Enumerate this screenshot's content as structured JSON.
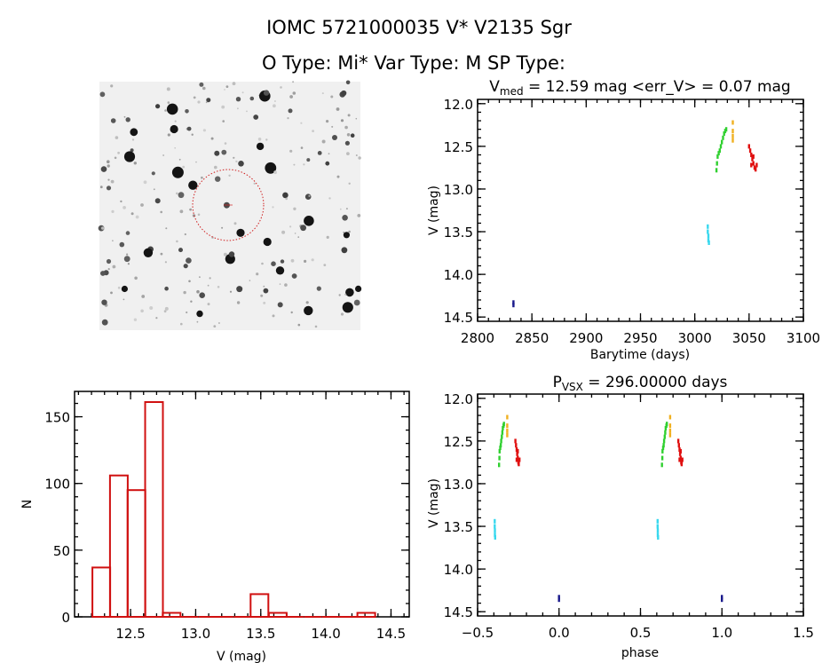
{
  "header": {
    "line1": "IOMC 5721000035    V* V2135 Sgr",
    "line2": "O Type: Mi*  Var Type: M   SP Type:"
  },
  "colors": {
    "axis": "#000000",
    "histogram": "#d01010",
    "navy": "#1a1a8c",
    "cyan": "#38d8ee",
    "green": "#30d030",
    "orange": "#f0b020",
    "red": "#e01010",
    "aperture": "#d02020"
  },
  "chart_data": [
    {
      "type": "scatter",
      "title_main": "V",
      "title_sub": "med",
      "title_rest": " = 12.59 mag <err_V> = 0.07 mag",
      "xlabel": "Barytime (days)",
      "ylabel": "V (mag)",
      "xlim": [
        2800,
        3100
      ],
      "ylim": [
        11.95,
        14.55
      ],
      "y_inverted": true,
      "xticks": [
        "2800",
        "2850",
        "2900",
        "2950",
        "3000",
        "3050",
        "3100"
      ],
      "yticks": [
        "12.0",
        "12.5",
        "13.0",
        "13.5",
        "14.0",
        "14.5"
      ],
      "series": [
        {
          "name": "navy",
          "color": "#1a1a8c",
          "points": [
            [
              2833,
              14.33
            ],
            [
              2833,
              14.36
            ]
          ]
        },
        {
          "name": "cyan",
          "color": "#38d8ee",
          "points": [
            [
              3012,
              13.44
            ],
            [
              3012,
              13.5
            ],
            [
              3012.5,
              13.55
            ],
            [
              3012.5,
              13.6
            ],
            [
              3013,
              13.63
            ]
          ]
        },
        {
          "name": "green",
          "color": "#30d030",
          "points": [
            [
              3020,
              12.78
            ],
            [
              3020.5,
              12.7
            ],
            [
              3021,
              12.62
            ],
            [
              3022,
              12.58
            ],
            [
              3023,
              12.55
            ],
            [
              3024,
              12.5
            ],
            [
              3025,
              12.45
            ],
            [
              3026,
              12.4
            ],
            [
              3027,
              12.35
            ],
            [
              3028,
              12.32
            ],
            [
              3029,
              12.3
            ]
          ]
        },
        {
          "name": "orange",
          "color": "#f0b020",
          "points": [
            [
              3035,
              12.22
            ],
            [
              3035,
              12.32
            ],
            [
              3035,
              12.38
            ],
            [
              3035,
              12.43
            ]
          ]
        },
        {
          "name": "red",
          "color": "#e01010",
          "points": [
            [
              3050,
              12.5
            ],
            [
              3051,
              12.55
            ],
            [
              3052,
              12.6
            ],
            [
              3053,
              12.65
            ],
            [
              3054,
              12.7
            ],
            [
              3055,
              12.75
            ],
            [
              3056,
              12.77
            ],
            [
              3057,
              12.72
            ],
            [
              3052,
              12.72
            ],
            [
              3054,
              12.62
            ]
          ]
        }
      ]
    },
    {
      "type": "bar",
      "xlabel": "V (mag)",
      "ylabel": "N",
      "xlim": [
        12.07,
        14.64
      ],
      "ylim": [
        0,
        169
      ],
      "bin_width": 0.136,
      "xticks": [
        "12.5",
        "13.0",
        "13.5",
        "14.0",
        "14.5"
      ],
      "yticks": [
        "0",
        "50",
        "100",
        "150"
      ],
      "bins": [
        12.275,
        12.41,
        12.545,
        12.68,
        12.815,
        12.95,
        13.09,
        13.22,
        13.36,
        13.49,
        13.63,
        13.76,
        13.9,
        14.04,
        14.17,
        14.31
      ],
      "values": [
        37,
        106,
        95,
        161,
        3,
        0,
        0,
        0,
        0,
        17,
        3,
        0,
        0,
        0,
        0,
        3
      ]
    },
    {
      "type": "scatter",
      "title_main": "P",
      "title_sub": "VSX",
      "title_rest": " = 296.00000 days",
      "xlabel": "phase",
      "ylabel": "V (mag)",
      "xlim": [
        -0.5,
        1.5
      ],
      "ylim": [
        11.95,
        14.55
      ],
      "y_inverted": true,
      "xticks": [
        "-0.5",
        "0.0",
        "0.5",
        "1.0",
        "1.5"
      ],
      "yticks": [
        "12.0",
        "12.5",
        "13.0",
        "13.5",
        "14.0",
        "14.5"
      ],
      "series": [
        {
          "name": "navy",
          "color": "#1a1a8c",
          "points": [
            [
              0.0,
              14.33
            ],
            [
              0.0,
              14.36
            ],
            [
              1.0,
              14.33
            ],
            [
              1.0,
              14.36
            ]
          ]
        },
        {
          "name": "cyan",
          "color": "#38d8ee",
          "points": [
            [
              -0.395,
              13.44
            ],
            [
              -0.395,
              13.5
            ],
            [
              -0.394,
              13.55
            ],
            [
              -0.394,
              13.6
            ],
            [
              -0.392,
              13.63
            ],
            [
              0.605,
              13.44
            ],
            [
              0.605,
              13.5
            ],
            [
              0.606,
              13.55
            ],
            [
              0.606,
              13.6
            ],
            [
              0.608,
              13.63
            ]
          ]
        },
        {
          "name": "green",
          "color": "#30d030",
          "points": [
            [
              -0.368,
              12.78
            ],
            [
              -0.366,
              12.7
            ],
            [
              -0.365,
              12.62
            ],
            [
              -0.361,
              12.58
            ],
            [
              -0.358,
              12.55
            ],
            [
              -0.355,
              12.5
            ],
            [
              -0.351,
              12.45
            ],
            [
              -0.348,
              12.4
            ],
            [
              -0.345,
              12.35
            ],
            [
              -0.341,
              12.32
            ],
            [
              -0.338,
              12.3
            ],
            [
              0.632,
              12.78
            ],
            [
              0.634,
              12.7
            ],
            [
              0.635,
              12.62
            ],
            [
              0.639,
              12.58
            ],
            [
              0.642,
              12.55
            ],
            [
              0.645,
              12.5
            ],
            [
              0.649,
              12.45
            ],
            [
              0.652,
              12.4
            ],
            [
              0.655,
              12.35
            ],
            [
              0.659,
              12.32
            ],
            [
              0.662,
              12.3
            ]
          ]
        },
        {
          "name": "orange",
          "color": "#f0b020",
          "points": [
            [
              -0.318,
              12.22
            ],
            [
              -0.318,
              12.32
            ],
            [
              -0.318,
              12.38
            ],
            [
              -0.318,
              12.43
            ],
            [
              0.682,
              12.22
            ],
            [
              0.682,
              12.32
            ],
            [
              0.682,
              12.38
            ],
            [
              0.682,
              12.43
            ]
          ]
        },
        {
          "name": "red",
          "color": "#e01010",
          "points": [
            [
              -0.268,
              12.5
            ],
            [
              -0.264,
              12.55
            ],
            [
              -0.26,
              12.6
            ],
            [
              -0.257,
              12.65
            ],
            [
              -0.253,
              12.7
            ],
            [
              -0.25,
              12.75
            ],
            [
              -0.247,
              12.77
            ],
            [
              -0.243,
              12.72
            ],
            [
              -0.26,
              12.72
            ],
            [
              -0.253,
              12.62
            ],
            [
              0.732,
              12.5
            ],
            [
              0.736,
              12.55
            ],
            [
              0.74,
              12.6
            ],
            [
              0.743,
              12.65
            ],
            [
              0.747,
              12.7
            ],
            [
              0.75,
              12.75
            ],
            [
              0.753,
              12.77
            ],
            [
              0.757,
              12.72
            ],
            [
              0.74,
              12.72
            ],
            [
              0.747,
              12.62
            ]
          ]
        }
      ]
    }
  ]
}
